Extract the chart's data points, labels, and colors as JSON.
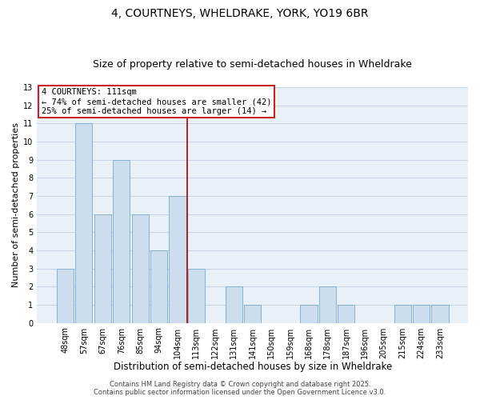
{
  "title": "4, COURTNEYS, WHELDRAKE, YORK, YO19 6BR",
  "subtitle": "Size of property relative to semi-detached houses in Wheldrake",
  "xlabel": "Distribution of semi-detached houses by size in Wheldrake",
  "ylabel": "Number of semi-detached properties",
  "bar_labels": [
    "48sqm",
    "57sqm",
    "67sqm",
    "76sqm",
    "85sqm",
    "94sqm",
    "104sqm",
    "113sqm",
    "122sqm",
    "131sqm",
    "141sqm",
    "150sqm",
    "159sqm",
    "168sqm",
    "178sqm",
    "187sqm",
    "196sqm",
    "205sqm",
    "215sqm",
    "224sqm",
    "233sqm"
  ],
  "bar_values": [
    3,
    11,
    6,
    9,
    6,
    4,
    7,
    3,
    0,
    2,
    1,
    0,
    0,
    1,
    2,
    1,
    0,
    0,
    1,
    1,
    1
  ],
  "bar_color": "#ccdded",
  "bar_edge_color": "#7aaac8",
  "grid_color": "#c5d5e5",
  "background_color": "#e8f0f8",
  "annotation_text_line1": "4 COURTNEYS: 111sqm",
  "annotation_text_line2": "← 74% of semi-detached houses are smaller (42)",
  "annotation_text_line3": "25% of semi-detached houses are larger (14) →",
  "vline_color": "#aa0000",
  "ylim": [
    0,
    13
  ],
  "yticks": [
    0,
    1,
    2,
    3,
    4,
    5,
    6,
    7,
    8,
    9,
    10,
    11,
    12,
    13
  ],
  "footer_line1": "Contains HM Land Registry data © Crown copyright and database right 2025.",
  "footer_line2": "Contains public sector information licensed under the Open Government Licence v3.0.",
  "title_fontsize": 10,
  "subtitle_fontsize": 9,
  "xlabel_fontsize": 8.5,
  "ylabel_fontsize": 8,
  "tick_fontsize": 7,
  "annotation_fontsize": 7.5,
  "footer_fontsize": 6
}
